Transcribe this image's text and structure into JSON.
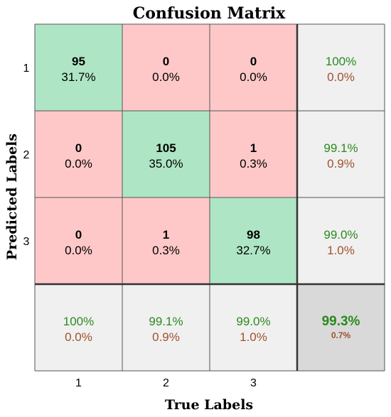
{
  "chart_data": {
    "type": "heatmap",
    "title": "Confusion Matrix",
    "xlabel": "True Labels",
    "ylabel": "Predicted Labels",
    "x_ticks": [
      "1",
      "2",
      "3"
    ],
    "y_ticks": [
      "1",
      "2",
      "3"
    ],
    "cells": [
      [
        {
          "count": "95",
          "pct": "31.7%",
          "kind": "diag"
        },
        {
          "count": "0",
          "pct": "0.0%",
          "kind": "off"
        },
        {
          "count": "0",
          "pct": "0.0%",
          "kind": "off"
        }
      ],
      [
        {
          "count": "0",
          "pct": "0.0%",
          "kind": "off"
        },
        {
          "count": "105",
          "pct": "35.0%",
          "kind": "diag"
        },
        {
          "count": "1",
          "pct": "0.3%",
          "kind": "off"
        }
      ],
      [
        {
          "count": "0",
          "pct": "0.0%",
          "kind": "off"
        },
        {
          "count": "1",
          "pct": "0.3%",
          "kind": "off"
        },
        {
          "count": "98",
          "pct": "32.7%",
          "kind": "diag"
        }
      ]
    ],
    "row_summary": [
      {
        "correct": "100%",
        "error": "0.0%"
      },
      {
        "correct": "99.1%",
        "error": "0.9%"
      },
      {
        "correct": "99.0%",
        "error": "1.0%"
      }
    ],
    "col_summary": [
      {
        "correct": "100%",
        "error": "0.0%"
      },
      {
        "correct": "99.1%",
        "error": "0.9%"
      },
      {
        "correct": "99.0%",
        "error": "1.0%"
      }
    ],
    "overall": {
      "correct": "99.3%",
      "error": "0.7%"
    },
    "colors": {
      "diag": "#aee6c5",
      "off": "#ffc8c8",
      "summary": "#f0f0f0",
      "overall": "#d9d9d9",
      "green_text": "#2a8a1e",
      "red_text": "#a0522d",
      "grid": "#555555",
      "thick": "#333333"
    }
  }
}
